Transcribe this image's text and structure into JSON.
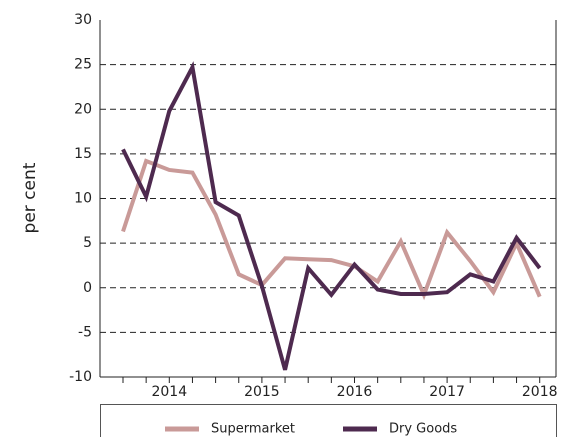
{
  "chart_data": {
    "type": "line",
    "y_label": "per cent",
    "categories": [
      null,
      null,
      "2014",
      null,
      null,
      null,
      "2015",
      null,
      null,
      null,
      "2016",
      null,
      null,
      null,
      "2017",
      null,
      null,
      null,
      "2018"
    ],
    "series": [
      {
        "name": "Supermarket",
        "color": "#c99a98",
        "values": [
          6.3,
          14.2,
          13.2,
          12.9,
          8.2,
          1.5,
          0.3,
          3.3,
          3.2,
          3.1,
          2.4,
          0.7,
          5.2,
          -0.8,
          6.2,
          3.0,
          -0.5,
          5.0,
          -1.0
        ]
      },
      {
        "name": "Dry Goods",
        "color": "#4e2a4f",
        "values": [
          15.5,
          10.2,
          19.8,
          24.7,
          9.6,
          8.1,
          0.2,
          -9.2,
          2.2,
          -0.8,
          2.6,
          -0.2,
          -0.7,
          -0.7,
          -0.5,
          1.5,
          0.7,
          5.6,
          2.2
        ]
      }
    ],
    "ylim": [
      -10,
      30
    ],
    "yticks": [
      -10,
      -5,
      0,
      5,
      10,
      15,
      20,
      25,
      30
    ],
    "grid": true
  }
}
